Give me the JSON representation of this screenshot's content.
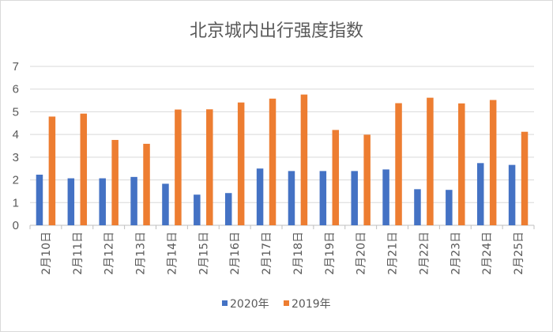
{
  "chart_data": {
    "type": "bar",
    "title": "北京城内出行强度指数",
    "categories": [
      "2月10日",
      "2月11日",
      "2月12日",
      "2月13日",
      "2月14日",
      "2月15日",
      "2月16日",
      "2月17日",
      "2月18日",
      "2月19日",
      "2月20日",
      "2月21日",
      "2月22日",
      "2月23日",
      "2月24日",
      "2月25日"
    ],
    "series": [
      {
        "name": "2020年",
        "color": "#4472c4",
        "values": [
          2.23,
          2.07,
          2.07,
          2.13,
          1.83,
          1.35,
          1.42,
          2.5,
          2.39,
          2.39,
          2.39,
          2.46,
          1.59,
          1.56,
          2.74,
          2.66
        ]
      },
      {
        "name": "2019年",
        "color": "#ed7d31",
        "values": [
          4.79,
          4.92,
          3.76,
          3.59,
          5.1,
          5.11,
          5.41,
          5.58,
          5.76,
          4.2,
          3.99,
          5.38,
          5.62,
          5.37,
          5.52,
          4.12
        ]
      }
    ],
    "ylim": [
      0,
      7
    ],
    "yticks": [
      0,
      1,
      2,
      3,
      4,
      5,
      6,
      7
    ],
    "xlabel": "",
    "ylabel": "",
    "grid": true,
    "legend_position": "bottom"
  }
}
